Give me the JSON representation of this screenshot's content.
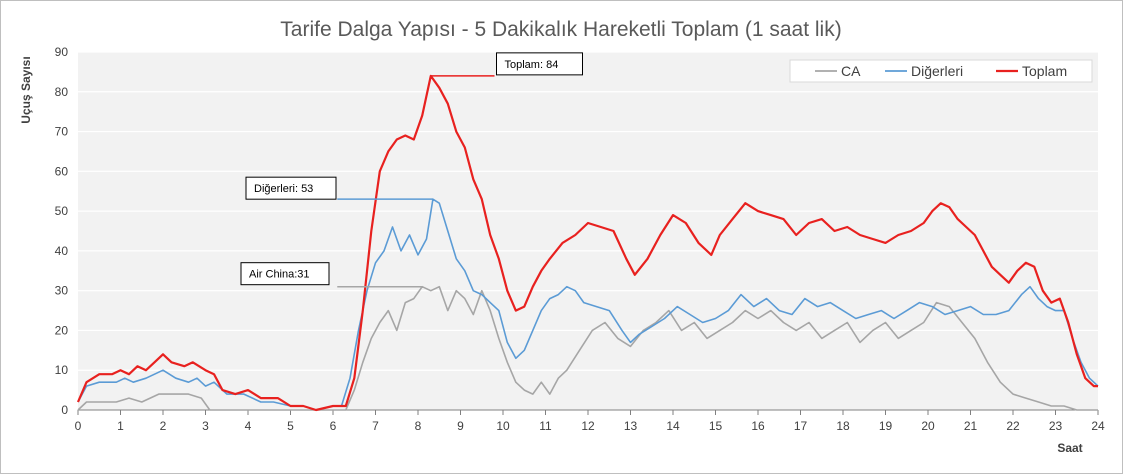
{
  "chart_data": {
    "type": "line",
    "title": "Tarife Dalga Yapısı - 5 Dakikalık Hareketli Toplam (1 saat lik)",
    "xlabel": "Saat",
    "ylabel": "Uçuş Sayısı",
    "xlim": [
      0,
      24
    ],
    "ylim": [
      0,
      90
    ],
    "x_ticks": [
      0,
      1,
      2,
      3,
      4,
      5,
      6,
      7,
      8,
      9,
      10,
      11,
      12,
      13,
      14,
      15,
      16,
      17,
      18,
      19,
      20,
      21,
      22,
      23,
      24
    ],
    "y_ticks": [
      0,
      10,
      20,
      30,
      40,
      50,
      60,
      70,
      80,
      90
    ],
    "grid": true,
    "legend_position": "top-right",
    "series": [
      {
        "name": "CA",
        "color": "#a6a6a6",
        "points": [
          [
            0,
            0
          ],
          [
            0.2,
            2
          ],
          [
            0.5,
            2
          ],
          [
            0.9,
            2
          ],
          [
            1.2,
            3
          ],
          [
            1.5,
            2
          ],
          [
            1.9,
            4
          ],
          [
            2.2,
            4
          ],
          [
            2.6,
            4
          ],
          [
            2.9,
            3
          ],
          [
            3.1,
            0
          ],
          [
            3.5,
            0
          ],
          [
            4,
            0
          ],
          [
            4.5,
            0
          ],
          [
            5,
            0
          ],
          [
            5.5,
            0
          ],
          [
            6,
            0
          ],
          [
            6.3,
            0
          ],
          [
            6.5,
            5
          ],
          [
            6.7,
            12
          ],
          [
            6.9,
            18
          ],
          [
            7.1,
            22
          ],
          [
            7.3,
            25
          ],
          [
            7.5,
            20
          ],
          [
            7.7,
            27
          ],
          [
            7.9,
            28
          ],
          [
            8.1,
            31
          ],
          [
            8.3,
            30
          ],
          [
            8.5,
            31
          ],
          [
            8.7,
            25
          ],
          [
            8.9,
            30
          ],
          [
            9.1,
            28
          ],
          [
            9.3,
            24
          ],
          [
            9.5,
            30
          ],
          [
            9.7,
            25
          ],
          [
            9.9,
            18
          ],
          [
            10.1,
            12
          ],
          [
            10.3,
            7
          ],
          [
            10.5,
            5
          ],
          [
            10.7,
            4
          ],
          [
            10.9,
            7
          ],
          [
            11.1,
            4
          ],
          [
            11.3,
            8
          ],
          [
            11.5,
            10
          ],
          [
            11.8,
            15
          ],
          [
            12.1,
            20
          ],
          [
            12.4,
            22
          ],
          [
            12.7,
            18
          ],
          [
            13,
            16
          ],
          [
            13.3,
            20
          ],
          [
            13.6,
            22
          ],
          [
            13.9,
            25
          ],
          [
            14.2,
            20
          ],
          [
            14.5,
            22
          ],
          [
            14.8,
            18
          ],
          [
            15.1,
            20
          ],
          [
            15.4,
            22
          ],
          [
            15.7,
            25
          ],
          [
            16,
            23
          ],
          [
            16.3,
            25
          ],
          [
            16.6,
            22
          ],
          [
            16.9,
            20
          ],
          [
            17.2,
            22
          ],
          [
            17.5,
            18
          ],
          [
            17.8,
            20
          ],
          [
            18.1,
            22
          ],
          [
            18.4,
            17
          ],
          [
            18.7,
            20
          ],
          [
            19,
            22
          ],
          [
            19.3,
            18
          ],
          [
            19.6,
            20
          ],
          [
            19.9,
            22
          ],
          [
            20.2,
            27
          ],
          [
            20.5,
            26
          ],
          [
            20.8,
            22
          ],
          [
            21.1,
            18
          ],
          [
            21.4,
            12
          ],
          [
            21.7,
            7
          ],
          [
            22,
            4
          ],
          [
            22.3,
            3
          ],
          [
            22.6,
            2
          ],
          [
            22.9,
            1
          ],
          [
            23.2,
            1
          ],
          [
            23.5,
            0
          ],
          [
            24,
            0
          ]
        ]
      },
      {
        "name": "Diğerleri",
        "color": "#5b9bd5",
        "points": [
          [
            0,
            2
          ],
          [
            0.2,
            6
          ],
          [
            0.5,
            7
          ],
          [
            0.9,
            7
          ],
          [
            1.1,
            8
          ],
          [
            1.3,
            7
          ],
          [
            1.6,
            8
          ],
          [
            2,
            10
          ],
          [
            2.3,
            8
          ],
          [
            2.6,
            7
          ],
          [
            2.8,
            8
          ],
          [
            3,
            6
          ],
          [
            3.2,
            7
          ],
          [
            3.5,
            4
          ],
          [
            3.9,
            4
          ],
          [
            4.3,
            2
          ],
          [
            4.6,
            2
          ],
          [
            5,
            1
          ],
          [
            5.3,
            1
          ],
          [
            5.6,
            0
          ],
          [
            6,
            1
          ],
          [
            6.2,
            1
          ],
          [
            6.4,
            8
          ],
          [
            6.6,
            20
          ],
          [
            6.8,
            30
          ],
          [
            7,
            37
          ],
          [
            7.2,
            40
          ],
          [
            7.4,
            46
          ],
          [
            7.6,
            40
          ],
          [
            7.8,
            44
          ],
          [
            8,
            39
          ],
          [
            8.2,
            43
          ],
          [
            8.35,
            53
          ],
          [
            8.5,
            52
          ],
          [
            8.7,
            45
          ],
          [
            8.9,
            38
          ],
          [
            9.1,
            35
          ],
          [
            9.3,
            30
          ],
          [
            9.5,
            29
          ],
          [
            9.7,
            27
          ],
          [
            9.9,
            25
          ],
          [
            10.1,
            17
          ],
          [
            10.3,
            13
          ],
          [
            10.5,
            15
          ],
          [
            10.7,
            20
          ],
          [
            10.9,
            25
          ],
          [
            11.1,
            28
          ],
          [
            11.3,
            29
          ],
          [
            11.5,
            31
          ],
          [
            11.7,
            30
          ],
          [
            11.9,
            27
          ],
          [
            12.2,
            26
          ],
          [
            12.5,
            25
          ],
          [
            12.8,
            20
          ],
          [
            13,
            17
          ],
          [
            13.2,
            19
          ],
          [
            13.5,
            21
          ],
          [
            13.8,
            23
          ],
          [
            14.1,
            26
          ],
          [
            14.4,
            24
          ],
          [
            14.7,
            22
          ],
          [
            15,
            23
          ],
          [
            15.3,
            25
          ],
          [
            15.6,
            29
          ],
          [
            15.9,
            26
          ],
          [
            16.2,
            28
          ],
          [
            16.5,
            25
          ],
          [
            16.8,
            24
          ],
          [
            17.1,
            28
          ],
          [
            17.4,
            26
          ],
          [
            17.7,
            27
          ],
          [
            18,
            25
          ],
          [
            18.3,
            23
          ],
          [
            18.6,
            24
          ],
          [
            18.9,
            25
          ],
          [
            19.2,
            23
          ],
          [
            19.5,
            25
          ],
          [
            19.8,
            27
          ],
          [
            20.1,
            26
          ],
          [
            20.4,
            24
          ],
          [
            20.7,
            25
          ],
          [
            21,
            26
          ],
          [
            21.3,
            24
          ],
          [
            21.6,
            24
          ],
          [
            21.9,
            25
          ],
          [
            22.2,
            29
          ],
          [
            22.4,
            31
          ],
          [
            22.6,
            28
          ],
          [
            22.8,
            26
          ],
          [
            23,
            25
          ],
          [
            23.2,
            25
          ],
          [
            23.4,
            18
          ],
          [
            23.6,
            12
          ],
          [
            23.8,
            8
          ],
          [
            24,
            6
          ]
        ]
      },
      {
        "name": "Toplam",
        "color": "#e8211f",
        "points": [
          [
            0,
            2
          ],
          [
            0.2,
            7
          ],
          [
            0.5,
            9
          ],
          [
            0.8,
            9
          ],
          [
            1,
            10
          ],
          [
            1.2,
            9
          ],
          [
            1.4,
            11
          ],
          [
            1.6,
            10
          ],
          [
            1.8,
            12
          ],
          [
            2,
            14
          ],
          [
            2.2,
            12
          ],
          [
            2.5,
            11
          ],
          [
            2.7,
            12
          ],
          [
            3,
            10
          ],
          [
            3.2,
            9
          ],
          [
            3.4,
            5
          ],
          [
            3.7,
            4
          ],
          [
            4,
            5
          ],
          [
            4.3,
            3
          ],
          [
            4.7,
            3
          ],
          [
            5,
            1
          ],
          [
            5.3,
            1
          ],
          [
            5.6,
            0
          ],
          [
            6,
            1
          ],
          [
            6.3,
            1
          ],
          [
            6.5,
            8
          ],
          [
            6.7,
            25
          ],
          [
            6.9,
            45
          ],
          [
            7.1,
            60
          ],
          [
            7.3,
            65
          ],
          [
            7.5,
            68
          ],
          [
            7.7,
            69
          ],
          [
            7.9,
            68
          ],
          [
            8.1,
            74
          ],
          [
            8.3,
            84
          ],
          [
            8.5,
            81
          ],
          [
            8.7,
            77
          ],
          [
            8.9,
            70
          ],
          [
            9.1,
            66
          ],
          [
            9.3,
            58
          ],
          [
            9.5,
            53
          ],
          [
            9.7,
            44
          ],
          [
            9.9,
            38
          ],
          [
            10.1,
            30
          ],
          [
            10.3,
            25
          ],
          [
            10.5,
            26
          ],
          [
            10.7,
            31
          ],
          [
            10.9,
            35
          ],
          [
            11.1,
            38
          ],
          [
            11.4,
            42
          ],
          [
            11.7,
            44
          ],
          [
            12,
            47
          ],
          [
            12.3,
            46
          ],
          [
            12.6,
            45
          ],
          [
            12.9,
            38
          ],
          [
            13.1,
            34
          ],
          [
            13.4,
            38
          ],
          [
            13.7,
            44
          ],
          [
            14,
            49
          ],
          [
            14.3,
            47
          ],
          [
            14.6,
            42
          ],
          [
            14.9,
            39
          ],
          [
            15.1,
            44
          ],
          [
            15.4,
            48
          ],
          [
            15.7,
            52
          ],
          [
            16,
            50
          ],
          [
            16.3,
            49
          ],
          [
            16.6,
            48
          ],
          [
            16.9,
            44
          ],
          [
            17.2,
            47
          ],
          [
            17.5,
            48
          ],
          [
            17.8,
            45
          ],
          [
            18.1,
            46
          ],
          [
            18.4,
            44
          ],
          [
            18.7,
            43
          ],
          [
            19,
            42
          ],
          [
            19.3,
            44
          ],
          [
            19.6,
            45
          ],
          [
            19.9,
            47
          ],
          [
            20.1,
            50
          ],
          [
            20.3,
            52
          ],
          [
            20.5,
            51
          ],
          [
            20.7,
            48
          ],
          [
            20.9,
            46
          ],
          [
            21.1,
            44
          ],
          [
            21.3,
            40
          ],
          [
            21.5,
            36
          ],
          [
            21.7,
            34
          ],
          [
            21.9,
            32
          ],
          [
            22.1,
            35
          ],
          [
            22.3,
            37
          ],
          [
            22.5,
            36
          ],
          [
            22.7,
            30
          ],
          [
            22.9,
            27
          ],
          [
            23.1,
            28
          ],
          [
            23.3,
            22
          ],
          [
            23.5,
            14
          ],
          [
            23.7,
            8
          ],
          [
            23.9,
            6
          ],
          [
            24,
            6
          ]
        ]
      }
    ],
    "annotations": [
      {
        "label": "Toplam: 84",
        "x": 8.3,
        "y": 84,
        "x_end": 9.8
      },
      {
        "label": "Diğerleri: 53",
        "x": 8.35,
        "y": 53,
        "x_start": 6.1
      },
      {
        "label": "Air China:31",
        "x": 8.1,
        "y": 31,
        "x_start": 6.1
      }
    ]
  }
}
